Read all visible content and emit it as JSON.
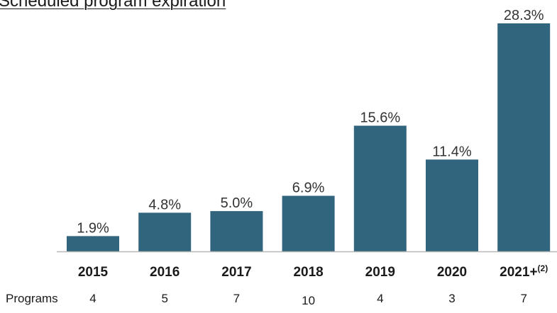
{
  "title": "Scheduled program expiration",
  "programs_label": "Programs",
  "colors": {
    "bar": "#31647d",
    "axis": "#b8b8b8"
  },
  "chart_data": {
    "type": "bar",
    "categories": [
      "2015",
      "2016",
      "2017",
      "2018",
      "2019",
      "2020",
      "2021+"
    ],
    "category_superscripts": [
      "",
      "",
      "",
      "",
      "",
      "",
      "(2)"
    ],
    "values": [
      1.9,
      4.8,
      5.0,
      6.9,
      15.6,
      11.4,
      28.3
    ],
    "value_labels": [
      "1.9%",
      "4.8%",
      "5.0%",
      "6.9%",
      "15.6%",
      "11.4%",
      "28.3%"
    ],
    "programs": [
      "4",
      "5",
      "7",
      "10",
      "4",
      "3",
      "7"
    ],
    "ylim": [
      0,
      28.3
    ],
    "grid": false,
    "xlabel": "",
    "ylabel": ""
  }
}
